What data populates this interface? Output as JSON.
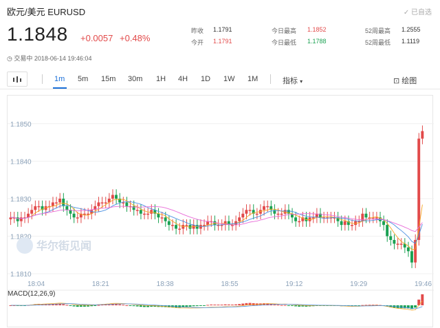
{
  "header": {
    "title": "欧元/美元  EURUSD",
    "favorite_label": "已自选"
  },
  "quote": {
    "price": "1.1848",
    "change": "+0.0057",
    "change_pct": "+0.48%"
  },
  "stats": [
    {
      "label": "昨收",
      "value": "1.1791",
      "color": "#333"
    },
    {
      "label": "今开",
      "value": "1.1791",
      "color": "#e24a4a"
    },
    {
      "label": "今日最高",
      "value": "1.1852",
      "color": "#e24a4a"
    },
    {
      "label": "今日最低",
      "value": "1.1788",
      "color": "#1aa152"
    },
    {
      "label": "52周最高",
      "value": "1.2555",
      "color": "#333"
    },
    {
      "label": "52周最低",
      "value": "1.1119",
      "color": "#333"
    }
  ],
  "status": {
    "text": "交易中 2018-06-14 19:46:04"
  },
  "toolbar": {
    "periods": [
      "1m",
      "5m",
      "15m",
      "30m",
      "1H",
      "4H",
      "1D",
      "1W",
      "1M"
    ],
    "active_period": "1m",
    "indicator_label": "指标",
    "draw_label": "绘图"
  },
  "watermark": "华尔街见闻",
  "colors": {
    "up": "#e24a4a",
    "down": "#1aa152",
    "accent": "#1a6fd8"
  },
  "chart_data": {
    "type": "candlestick",
    "y_ticks": [
      "1.1850",
      "1.1840",
      "1.1830",
      "1.1820",
      "1.1810"
    ],
    "x_ticks": [
      "18:04",
      "18:21",
      "18:38",
      "18:55",
      "19:12",
      "19:29",
      "19:46"
    ],
    "ylim": [
      1.1808,
      1.1856
    ],
    "closes": [
      1.1825,
      1.1825,
      1.1824,
      1.1825,
      1.1825,
      1.1826,
      1.1827,
      1.1828,
      1.1828,
      1.1827,
      1.1828,
      1.1828,
      1.1829,
      1.1829,
      1.183,
      1.1828,
      1.1827,
      1.1826,
      1.1825,
      1.1825,
      1.1826,
      1.1826,
      1.1826,
      1.1827,
      1.1828,
      1.1829,
      1.1829,
      1.1829,
      1.183,
      1.1831,
      1.183,
      1.1829,
      1.1829,
      1.1828,
      1.1828,
      1.1827,
      1.1827,
      1.1826,
      1.1826,
      1.1826,
      1.1827,
      1.1826,
      1.1825,
      1.1825,
      1.1824,
      1.1823,
      1.1823,
      1.1822,
      1.1822,
      1.1823,
      1.1823,
      1.1822,
      1.1823,
      1.1822,
      1.1823,
      1.1823,
      1.1824,
      1.1824,
      1.1823,
      1.1823,
      1.1823,
      1.1824,
      1.1823,
      1.1823,
      1.1824,
      1.1825,
      1.1826,
      1.1827,
      1.1827,
      1.1826,
      1.1826,
      1.1827,
      1.1828,
      1.1828,
      1.1827,
      1.1826,
      1.1826,
      1.1826,
      1.1827,
      1.1826,
      1.1825,
      1.1824,
      1.1824,
      1.1825,
      1.1824,
      1.1825,
      1.1825,
      1.1826,
      1.1825,
      1.1825,
      1.1825,
      1.1825,
      1.1825,
      1.1824,
      1.1823,
      1.1824,
      1.1823,
      1.1823,
      1.1824,
      1.1824,
      1.1826,
      1.1825,
      1.1825,
      1.1825,
      1.1825,
      1.1824,
      1.1823,
      1.182,
      1.1819,
      1.1818,
      1.1818,
      1.1818,
      1.1817,
      1.1816,
      1.1813,
      1.1819,
      1.1846,
      1.1848
    ],
    "macd_label": "MACD(12,26,9)"
  }
}
